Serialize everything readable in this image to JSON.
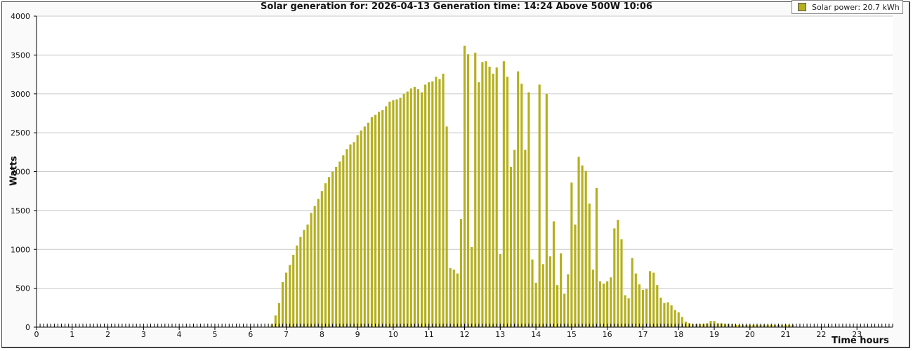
{
  "chart_data": {
    "type": "bar",
    "title": "Solar generation for: 2026-04-13 Generation time: 14:24 Above 500W 10:06",
    "xlabel": "Time hours",
    "ylabel": "Watts",
    "xlim": [
      0,
      24
    ],
    "ylim": [
      0,
      4000
    ],
    "x_ticks": [
      "0",
      "1",
      "2",
      "3",
      "4",
      "5",
      "6",
      "7",
      "8",
      "9",
      "10",
      "11",
      "12",
      "13",
      "14",
      "15",
      "16",
      "17",
      "18",
      "19",
      "20",
      "21",
      "22",
      "23"
    ],
    "y_ticks": [
      "0",
      "500",
      "1000",
      "1500",
      "2000",
      "2500",
      "3000",
      "3500",
      "4000"
    ],
    "grid": "horizontal",
    "legend_position": "top-right",
    "series": [
      {
        "name": "Solar power: 20.7 kWh",
        "color": "#b5b01e",
        "interval_minutes": 6,
        "start_hour": 6.6,
        "values": [
          40,
          150,
          310,
          580,
          700,
          800,
          930,
          1050,
          1160,
          1250,
          1320,
          1470,
          1560,
          1650,
          1750,
          1850,
          1930,
          2000,
          2060,
          2130,
          2210,
          2290,
          2350,
          2380,
          2470,
          2530,
          2580,
          2630,
          2700,
          2730,
          2770,
          2790,
          2840,
          2900,
          2920,
          2930,
          2950,
          3000,
          3030,
          3070,
          3090,
          3060,
          3020,
          3120,
          3150,
          3160,
          3220,
          3190,
          3260,
          2580,
          760,
          740,
          690,
          1390,
          3620,
          3510,
          1030,
          3530,
          3150,
          3410,
          3420,
          3350,
          3260,
          3340,
          940,
          3420,
          3220,
          2060,
          2280,
          3290,
          3130,
          2280,
          3020,
          870,
          570,
          3120,
          810,
          3000,
          910,
          1360,
          540,
          950,
          430,
          680,
          1860,
          1320,
          2190,
          2080,
          2010,
          1590,
          740,
          1790,
          590,
          560,
          590,
          640,
          1270,
          1380,
          1130,
          410,
          370,
          890,
          690,
          550,
          480,
          490,
          720,
          700,
          540,
          380,
          310,
          320,
          280,
          220,
          190,
          130,
          70,
          50,
          40,
          40,
          40,
          40,
          50,
          80,
          80,
          50,
          50,
          40,
          40,
          40,
          30,
          30,
          30,
          30,
          30,
          30,
          30,
          30,
          30,
          30,
          30,
          30,
          30,
          30,
          30,
          30,
          30
        ]
      }
    ]
  }
}
